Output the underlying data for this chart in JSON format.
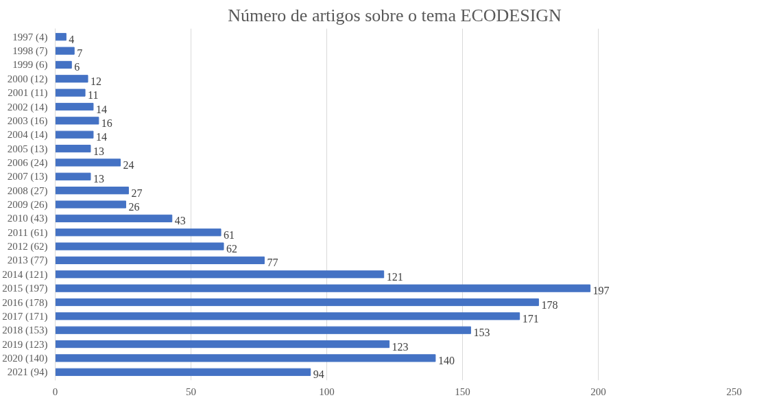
{
  "chart_data": {
    "type": "bar",
    "orientation": "horizontal",
    "title": "Número de artigos sobre o tema ECODESIGN",
    "categories": [
      "1997 (4)",
      "1998 (7)",
      "1999 (6)",
      "2000 (12)",
      "2001 (11)",
      "2002 (14)",
      "2003 (16)",
      "2004 (14)",
      "2005 (13)",
      "2006 (24)",
      "2007 (13)",
      "2008 (27)",
      "2009 (26)",
      "2010 (43)",
      "2011 (61)",
      "2012 (62)",
      "2013 (77)",
      "2014 (121)",
      "2015 (197)",
      "2016 (178)",
      "2017 (171)",
      "2018 (153)",
      "2019 (123)",
      "2020 (140)",
      "2021 (94)"
    ],
    "values": [
      4,
      7,
      6,
      12,
      11,
      14,
      16,
      14,
      13,
      24,
      13,
      27,
      26,
      43,
      61,
      62,
      77,
      121,
      197,
      178,
      171,
      153,
      123,
      140,
      94
    ],
    "color": "#4472c4",
    "xlim": [
      0,
      250
    ],
    "xticks": [
      0,
      50,
      100,
      150,
      200,
      250
    ],
    "grid": "x",
    "data_labels": true
  }
}
